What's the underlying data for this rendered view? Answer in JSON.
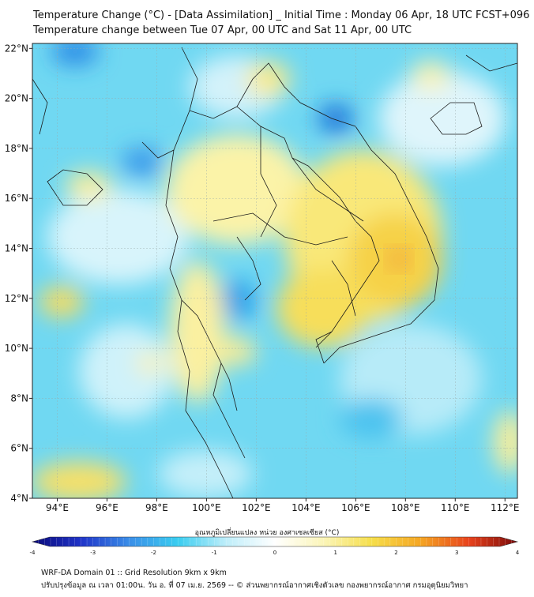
{
  "title_line1": "Temperature Change (°C) - [Data Assimilation] _ Initial Time : Monday 06 Apr, 18 UTC FCST+096",
  "title_line2": "Temperature change between Tue 07 Apr, 00 UTC and Sat 11 Apr, 00 UTC",
  "map": {
    "lon_range": [
      93,
      112.5
    ],
    "lat_range": [
      4,
      22.2
    ],
    "lon_ticks": [
      {
        "value": 94,
        "label": "94°E"
      },
      {
        "value": 96,
        "label": "96°E"
      },
      {
        "value": 98,
        "label": "98°E"
      },
      {
        "value": 100,
        "label": "100°E"
      },
      {
        "value": 102,
        "label": "102°E"
      },
      {
        "value": 104,
        "label": "104°E"
      },
      {
        "value": 106,
        "label": "106°E"
      },
      {
        "value": 108,
        "label": "108°E"
      },
      {
        "value": 110,
        "label": "110°E"
      },
      {
        "value": 112,
        "label": "112°E"
      }
    ],
    "lat_ticks": [
      {
        "value": 4,
        "label": "4°N"
      },
      {
        "value": 6,
        "label": "6°N"
      },
      {
        "value": 8,
        "label": "8°N"
      },
      {
        "value": 10,
        "label": "10°N"
      },
      {
        "value": 12,
        "label": "12°N"
      },
      {
        "value": 14,
        "label": "14°N"
      },
      {
        "value": 16,
        "label": "16°N"
      },
      {
        "value": 18,
        "label": "18°N"
      },
      {
        "value": 20,
        "label": "20°N"
      },
      {
        "value": 22,
        "label": "22°N"
      }
    ],
    "grid": true
  },
  "colorbar": {
    "title": "อุณหภูมิเปลี่ยนแปลง หน่วย องศาเซลเซียส (°C)",
    "min": -4,
    "max": 4,
    "ticks": [
      {
        "value": -4,
        "label": "-4"
      },
      {
        "value": -3,
        "label": "-3"
      },
      {
        "value": -2,
        "label": "-2"
      },
      {
        "value": -1,
        "label": "-1"
      },
      {
        "value": 0,
        "label": "0"
      },
      {
        "value": 1,
        "label": "1"
      },
      {
        "value": 2,
        "label": "2"
      },
      {
        "value": 3,
        "label": "3"
      },
      {
        "value": 4,
        "label": "4"
      }
    ],
    "color_stops": [
      "#0a0a7a",
      "#1f33c8",
      "#3a8ee8",
      "#39cdf0",
      "#bfeefa",
      "#ffffff",
      "#fbf5b8",
      "#f6de4a",
      "#f5a623",
      "#e8421c",
      "#7a0a0a"
    ]
  },
  "footer_line1": "WRF-DA Domain 01 :: Grid Resolution 9km x 9km",
  "footer_line2": "ปรับปรุงข้อมูล ณ เวลา 01:00น. วัน อ. ที่ 07 เม.ย. 2569 -- © ส่วนพยากรณ์อากาศเชิงตัวเลข กองพยากรณ์อากาศ กรมอุตุนิยมวิทยา"
}
